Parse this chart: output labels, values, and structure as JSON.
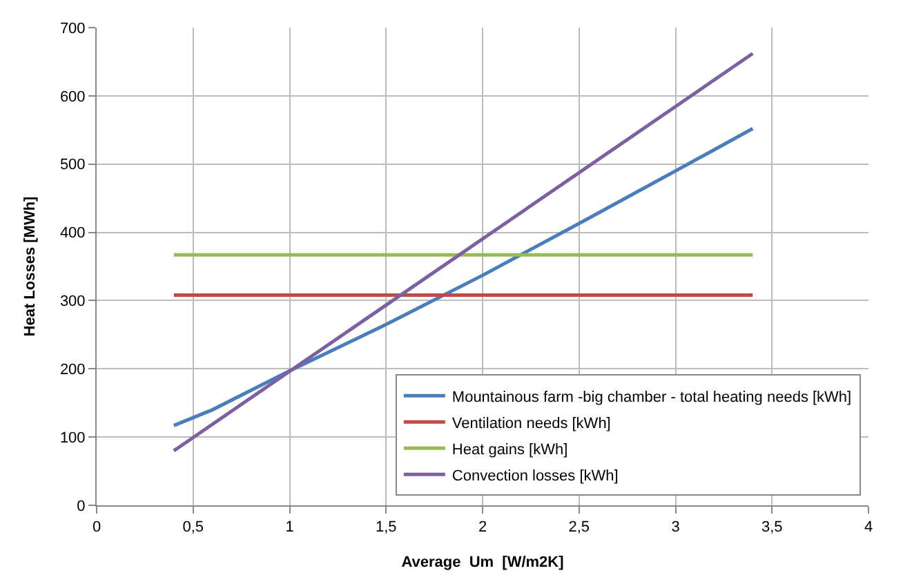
{
  "chart_data": {
    "type": "line",
    "xlabel": "Average  Um  [W/m2K]",
    "ylabel": "Heat Losses [MWh]",
    "xlim": [
      0,
      4
    ],
    "ylim": [
      0,
      700
    ],
    "xticks": [
      0,
      {
        "value": 0.5,
        "label": "0,5"
      },
      1,
      {
        "value": 1.5,
        "label": "1,5"
      },
      2,
      {
        "value": 2.5,
        "label": "2,5"
      },
      3,
      {
        "value": 3.5,
        "label": "3,5"
      },
      4
    ],
    "yticks": [
      0,
      100,
      200,
      300,
      400,
      500,
      600,
      700
    ],
    "grid": true,
    "legend": "bottom right",
    "marker": "none",
    "line_style": "solid",
    "series": [
      {
        "name": "Mountainous farm -big chamber - total heating needs [kWh]",
        "color": "#4a7ebb",
        "x": [
          0.4,
          0.6,
          1,
          1.5,
          2,
          2.5,
          3,
          3.4
        ],
        "values": [
          117,
          140,
          197,
          265,
          337,
          413,
          490,
          552
        ]
      },
      {
        "name": "Ventilation needs [kWh]",
        "color": "#be4b48",
        "x": [
          0.4,
          3.4
        ],
        "values": [
          308,
          308
        ]
      },
      {
        "name": "Heat gains [kWh]",
        "color": "#98b954",
        "x": [
          0.4,
          3.4
        ],
        "values": [
          367,
          367
        ]
      },
      {
        "name": "Convection losses [kWh]",
        "color": "#7d60a0",
        "x": [
          0.4,
          3.4
        ],
        "values": [
          80,
          662
        ]
      }
    ]
  }
}
